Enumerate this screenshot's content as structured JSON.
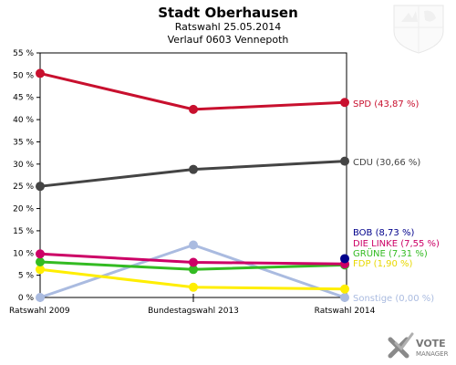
{
  "chart_data": {
    "type": "line",
    "title": "Stadt Oberhausen",
    "subtitle_1": "Ratswahl 25.05.2014",
    "subtitle_2": "Verlauf 0603 Vennepoth",
    "categories": [
      "Ratswahl 2009",
      "Bundestagswahl 2013",
      "Ratswahl 2014"
    ],
    "ylim": [
      0,
      55
    ],
    "yticks": [
      "0 %",
      "5 %",
      "10 %",
      "15 %",
      "20 %",
      "25 %",
      "30 %",
      "35 %",
      "40 %",
      "45 %",
      "50 %",
      "55 %"
    ],
    "ytick_values": [
      0,
      5,
      10,
      15,
      20,
      25,
      30,
      35,
      40,
      45,
      50,
      55
    ],
    "grid": false,
    "series": [
      {
        "name": "SPD",
        "values": [
          50.4,
          42.3,
          43.87
        ],
        "color": "#c8102e",
        "end_label": "SPD (43,87 %)"
      },
      {
        "name": "CDU",
        "values": [
          25.0,
          28.8,
          30.66
        ],
        "color": "#444444",
        "end_label": "CDU (30,66 %)"
      },
      {
        "name": "BOB",
        "values": [
          null,
          null,
          8.73
        ],
        "color": "#00008b",
        "end_label": "BOB (8,73 %)"
      },
      {
        "name": "DIE LINKE",
        "values": [
          9.8,
          7.9,
          7.55
        ],
        "color": "#cc0066",
        "end_label": "DIE LINKE (7,55 %)"
      },
      {
        "name": "GRÜNE",
        "values": [
          8.0,
          6.3,
          7.31
        ],
        "color": "#33bb22",
        "end_label": "GRÜNE (7,31 %)"
      },
      {
        "name": "FDP",
        "values": [
          6.3,
          2.3,
          1.9
        ],
        "color": "#ffee00",
        "end_label": "FDP (1,90 %)"
      },
      {
        "name": "Sonstige",
        "values": [
          0.0,
          11.8,
          0.0
        ],
        "color": "#aabbe0",
        "end_label": "Sonstige (0,00 %)"
      }
    ]
  },
  "logo": {
    "line1": "VOTE",
    "line2": "MANAGER"
  }
}
